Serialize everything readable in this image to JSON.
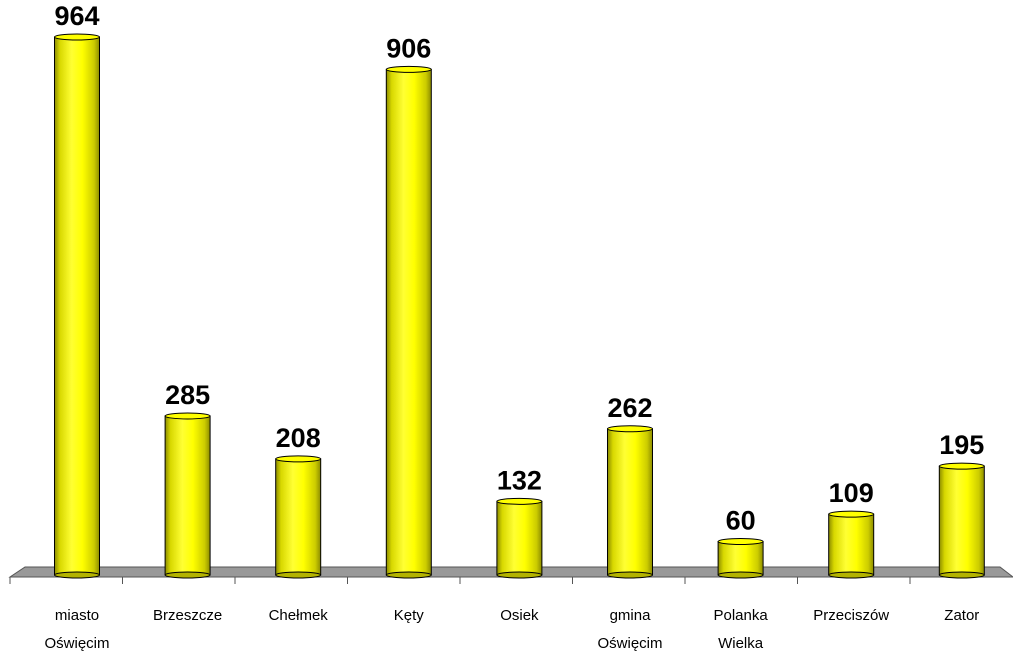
{
  "chart_data": {
    "type": "bar",
    "categories": [
      [
        "miasto",
        "Oświęcim"
      ],
      [
        "Brzeszcze"
      ],
      [
        "Chełmek"
      ],
      [
        "Kęty"
      ],
      [
        "Osiek"
      ],
      [
        "gmina",
        "Oświęcim"
      ],
      [
        "Polanka",
        "Wielka"
      ],
      [
        "Przeciszów"
      ],
      [
        "Zator"
      ]
    ],
    "values": [
      964,
      285,
      208,
      906,
      132,
      262,
      60,
      109,
      195
    ],
    "data_labels": [
      "964",
      "285",
      "208",
      "906",
      "132",
      "262",
      "60",
      "109",
      "195"
    ],
    "ylim": [
      0,
      964
    ],
    "grid": false,
    "legend": "none",
    "title": "",
    "xlabel": "",
    "ylabel": "",
    "colors": {
      "bar": "#ffff00",
      "bar_shade": "#8c8c00",
      "bar_outline": "#000000",
      "floor": "#999999",
      "floor_edge": "#555555"
    }
  }
}
